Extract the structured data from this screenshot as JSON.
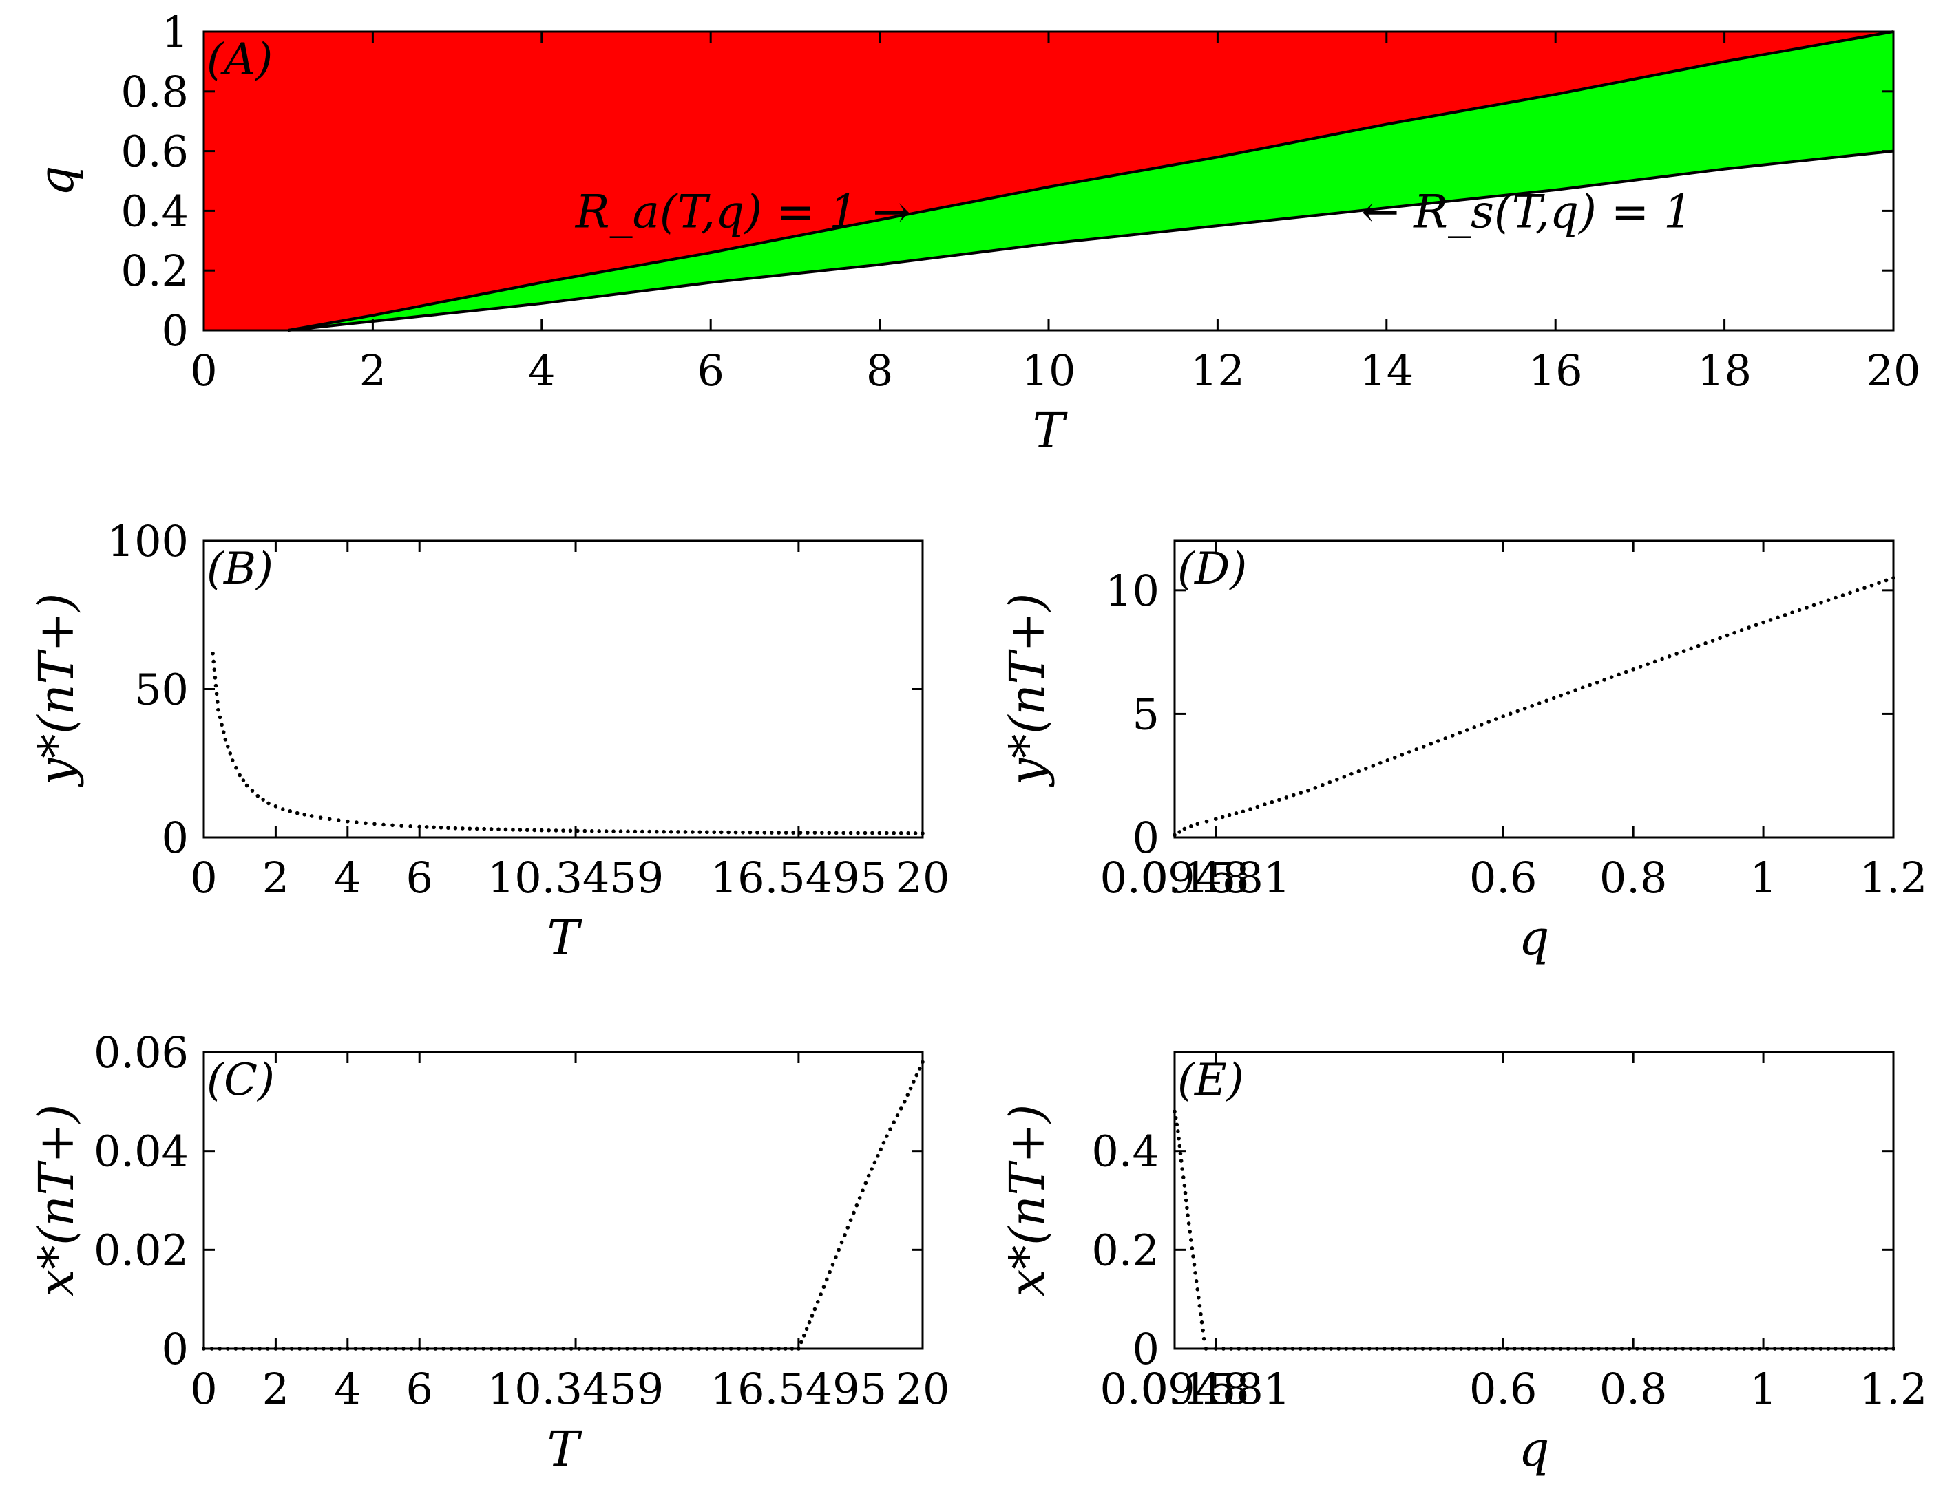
{
  "chart_data": [
    {
      "panel": "(A)",
      "type": "area",
      "xlabel": "T",
      "ylabel": "q",
      "xlim": [
        0,
        20
      ],
      "ylim": [
        0,
        1
      ],
      "xticks": [
        "0",
        "2",
        "4",
        "6",
        "8",
        "10",
        "12",
        "14",
        "16",
        "18",
        "20"
      ],
      "yticks": [
        "0",
        "0.2",
        "0.4",
        "0.6",
        "0.8",
        "1"
      ],
      "curves": {
        "Ra": {
          "label": "R_a(T,q) = 1",
          "points": [
            [
              1,
              0
            ],
            [
              2,
              0.05
            ],
            [
              4,
              0.16
            ],
            [
              6,
              0.26
            ],
            [
              8,
              0.37
            ],
            [
              10,
              0.48
            ],
            [
              12,
              0.58
            ],
            [
              14,
              0.69
            ],
            [
              16,
              0.79
            ],
            [
              18,
              0.9
            ],
            [
              20,
              1.0
            ]
          ]
        },
        "Rs": {
          "label": "R_s(T,q) = 1",
          "points": [
            [
              1,
              0
            ],
            [
              2,
              0.03
            ],
            [
              4,
              0.09
            ],
            [
              6,
              0.16
            ],
            [
              8,
              0.22
            ],
            [
              10,
              0.29
            ],
            [
              12,
              0.35
            ],
            [
              14,
              0.41
            ],
            [
              16,
              0.47
            ],
            [
              18,
              0.54
            ],
            [
              20,
              0.6
            ]
          ]
        }
      },
      "regions": {
        "above_Ra": "#ff0000",
        "between": "#00ff00"
      },
      "annotations": [
        {
          "text": "R_a(T,q) = 1 →",
          "anchor": [
            4.4,
            0.4
          ]
        },
        {
          "text": "← R_s(T,q) = 1",
          "anchor": [
            13.7,
            0.4
          ]
        }
      ]
    },
    {
      "panel": "(B)",
      "type": "scatter",
      "xlabel": "T",
      "ylabel": "y*(nT+)",
      "xlim": [
        0,
        20
      ],
      "ylim": [
        0,
        100
      ],
      "xticks": [
        "0",
        "2",
        "4",
        "6",
        "10.3459",
        "16.5495",
        "20"
      ],
      "yticks": [
        "0",
        "50",
        "100"
      ],
      "points": [
        [
          0.25,
          62
        ],
        [
          0.4,
          43
        ],
        [
          0.6,
          33
        ],
        [
          0.8,
          26
        ],
        [
          1.0,
          21
        ],
        [
          1.2,
          17.5
        ],
        [
          1.5,
          14
        ],
        [
          1.8,
          11.5
        ],
        [
          2.2,
          9.5
        ],
        [
          2.6,
          8.2
        ],
        [
          3.0,
          7.2
        ],
        [
          3.5,
          6.2
        ],
        [
          4.0,
          5.4
        ],
        [
          4.5,
          4.8
        ],
        [
          5.0,
          4.3
        ],
        [
          5.5,
          3.9
        ],
        [
          6.0,
          3.6
        ],
        [
          7.0,
          3.1
        ],
        [
          8.0,
          2.8
        ],
        [
          9.0,
          2.5
        ],
        [
          10.0,
          2.3
        ],
        [
          11.0,
          2.1
        ],
        [
          12.0,
          2.0
        ],
        [
          13.0,
          1.9
        ],
        [
          14.0,
          1.8
        ],
        [
          15.0,
          1.7
        ],
        [
          16.0,
          1.6
        ],
        [
          17.0,
          1.6
        ],
        [
          18.0,
          1.5
        ],
        [
          19.0,
          1.5
        ],
        [
          20.0,
          1.4
        ]
      ]
    },
    {
      "panel": "(C)",
      "type": "scatter",
      "xlabel": "T",
      "ylabel": "x*(nT+)",
      "xlim": [
        0,
        20
      ],
      "ylim": [
        0,
        0.06
      ],
      "xticks": [
        "0",
        "2",
        "4",
        "6",
        "10.3459",
        "16.5495",
        "20"
      ],
      "yticks": [
        "0",
        "0.02",
        "0.04",
        "0.06"
      ],
      "points": [
        [
          0,
          0
        ],
        [
          2,
          0
        ],
        [
          4,
          0
        ],
        [
          6,
          0
        ],
        [
          8,
          0
        ],
        [
          10,
          0
        ],
        [
          12,
          0
        ],
        [
          14,
          0
        ],
        [
          16,
          0
        ],
        [
          16.55,
          0
        ],
        [
          17,
          0.008
        ],
        [
          17.5,
          0.017
        ],
        [
          18,
          0.026
        ],
        [
          18.5,
          0.035
        ],
        [
          19,
          0.043
        ],
        [
          19.5,
          0.05
        ],
        [
          20,
          0.058
        ]
      ]
    },
    {
      "panel": "(D)",
      "type": "scatter",
      "xlabel": "q",
      "ylabel": "y*(nT+)",
      "xlim": [
        0.0948,
        1.2
      ],
      "ylim": [
        0,
        12
      ],
      "xticks": [
        "0.0948",
        "0.1581",
        "0.6",
        "0.8",
        "1",
        "1.2"
      ],
      "yticks": [
        "0",
        "5",
        "10"
      ],
      "points": [
        [
          0.0948,
          0.1
        ],
        [
          0.11,
          0.35
        ],
        [
          0.13,
          0.55
        ],
        [
          0.1581,
          0.75
        ],
        [
          0.2,
          1.05
        ],
        [
          0.3,
          1.9
        ],
        [
          0.4,
          2.9
        ],
        [
          0.5,
          3.9
        ],
        [
          0.6,
          4.9
        ],
        [
          0.7,
          5.85
        ],
        [
          0.8,
          6.8
        ],
        [
          0.9,
          7.75
        ],
        [
          1.0,
          8.7
        ],
        [
          1.1,
          9.6
        ],
        [
          1.2,
          10.5
        ]
      ]
    },
    {
      "panel": "(E)",
      "type": "scatter",
      "xlabel": "q",
      "ylabel": "x*(nT+)",
      "xlim": [
        0.0948,
        1.2
      ],
      "ylim": [
        0,
        0.6
      ],
      "xticks": [
        "0.0948",
        "0.1581",
        "0.6",
        "0.8",
        "1",
        "1.2"
      ],
      "yticks": [
        "0",
        "0.2",
        "0.4"
      ],
      "points": [
        [
          0.0948,
          0.48
        ],
        [
          0.1,
          0.44
        ],
        [
          0.105,
          0.38
        ],
        [
          0.11,
          0.33
        ],
        [
          0.115,
          0.27
        ],
        [
          0.12,
          0.22
        ],
        [
          0.125,
          0.17
        ],
        [
          0.13,
          0.12
        ],
        [
          0.135,
          0.07
        ],
        [
          0.14,
          0.02
        ],
        [
          0.143,
          0.0
        ],
        [
          0.1581,
          0
        ],
        [
          0.3,
          0
        ],
        [
          0.5,
          0
        ],
        [
          0.7,
          0
        ],
        [
          0.9,
          0
        ],
        [
          1.1,
          0
        ],
        [
          1.2,
          0
        ]
      ]
    }
  ]
}
